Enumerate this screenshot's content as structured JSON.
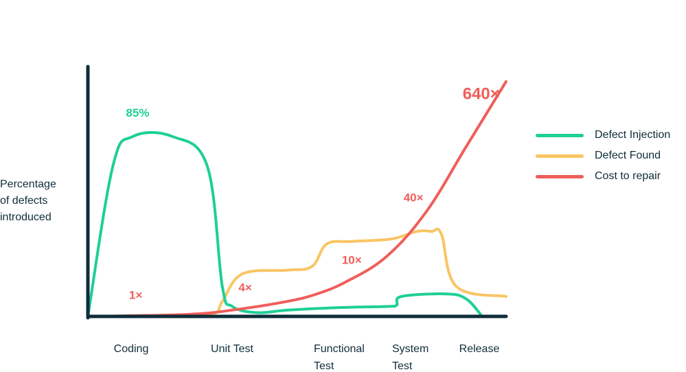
{
  "chart_data": {
    "type": "line",
    "ylabel": "Percentage\nof defects\nintroduced",
    "categories": [
      "Coding",
      "Unit Test",
      "Functional\nTest",
      "System\nTest",
      "Release"
    ],
    "series": [
      {
        "name": "Defect Injection",
        "color": "#1ecf96",
        "x": [
          0,
          0.25,
          0.45,
          0.85,
          1.2,
          1.35,
          1.45,
          1.7,
          2.0,
          2.5,
          3.0,
          3.1,
          3.15,
          3.6,
          3.8,
          3.96
        ],
        "values": [
          0,
          60,
          72,
          72,
          60,
          12,
          4,
          1.5,
          2.5,
          3.5,
          4,
          4.5,
          8,
          9,
          7,
          0
        ]
      },
      {
        "name": "Defect Found",
        "color": "#f9c565",
        "x": [
          0,
          0.8,
          1.25,
          1.35,
          1.55,
          2.0,
          2.25,
          2.4,
          2.65,
          3.05,
          3.3,
          3.45,
          3.55,
          3.7,
          4.2
        ],
        "values": [
          0,
          0.5,
          1,
          6,
          17,
          18.5,
          20,
          29,
          30,
          31,
          34,
          34,
          33,
          12,
          8
        ]
      },
      {
        "name": "Cost to repair",
        "color": "#ef5e5a",
        "x": [
          0,
          1.0,
          1.5,
          2.0,
          2.3,
          2.6,
          3.0,
          3.4,
          3.8,
          4.2
        ],
        "values": [
          0,
          0.8,
          2.8,
          6,
          9,
          14,
          24,
          42,
          68,
          94
        ]
      }
    ],
    "annotations": [
      {
        "text": "85%",
        "color": "#1ecf96",
        "x": 0.5,
        "y": 80
      },
      {
        "text": "1×",
        "color": "#ef5e5a",
        "x": 0.48,
        "y": 7
      },
      {
        "text": "4×",
        "color": "#ef5e5a",
        "x": 1.58,
        "y": 10
      },
      {
        "text": "10×",
        "color": "#ef5e5a",
        "x": 2.65,
        "y": 21
      },
      {
        "text": "40×",
        "color": "#ef5e5a",
        "x": 3.27,
        "y": 46
      },
      {
        "text": "640×",
        "color": "#ef5e5a",
        "x": 3.95,
        "y": 87,
        "large": true
      }
    ],
    "xlim": [
      0,
      4.2
    ],
    "ylim": [
      0,
      100
    ],
    "grid": false,
    "legend": "right"
  }
}
